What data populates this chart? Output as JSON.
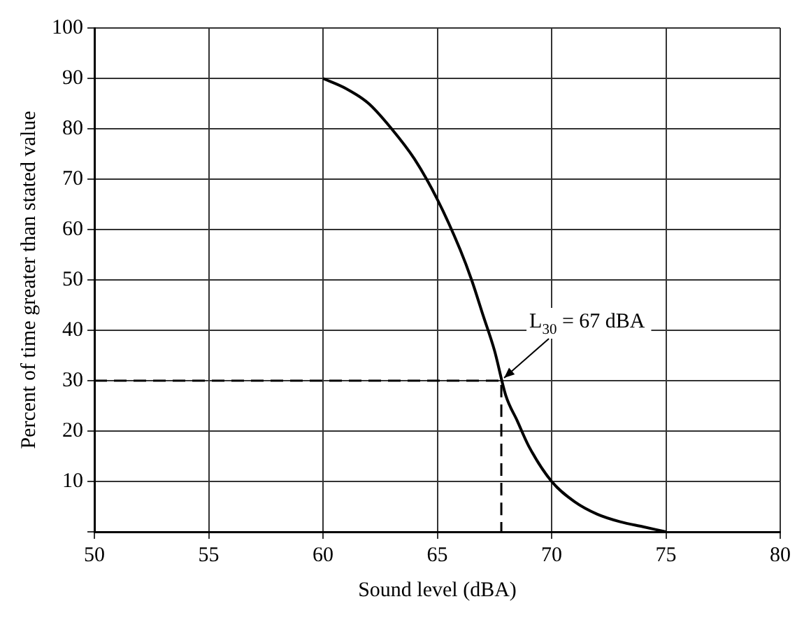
{
  "chart_data": {
    "type": "line",
    "xlabel": "Sound level (dBA)",
    "ylabel": "Percent of time greater than stated value",
    "series": [
      {
        "color": "#000000",
        "x": [
          60,
          61,
          62,
          63,
          64,
          65,
          66,
          66.5,
          67,
          67.5,
          68,
          68.5,
          69,
          70,
          71,
          72,
          73,
          74,
          75
        ],
        "values": [
          90,
          88,
          85,
          80,
          74,
          66,
          56,
          50,
          43,
          36,
          27,
          22,
          17,
          10,
          6,
          3.5,
          2,
          1,
          0
        ]
      },
      {
        "color": "#000000",
        "line_style": "dashed",
        "x": [
          50,
          67.8,
          67.8
        ],
        "values": [
          30,
          30,
          0
        ]
      }
    ],
    "xlim": [
      50,
      80
    ],
    "xticks": [
      50,
      55,
      60,
      65,
      70,
      75,
      80
    ],
    "ylim": [
      0,
      100
    ],
    "yticks": [
      {
        "value": 0,
        "label": null
      },
      10,
      20,
      30,
      40,
      50,
      60,
      70,
      80,
      90,
      100
    ],
    "annotations": [
      {
        "text": "L$_{30}$ = 67 dBA",
        "x": 67.8,
        "y": 30
      }
    ],
    "grid": true,
    "legend": false,
    "marker": "none",
    "line_style": "solid"
  }
}
